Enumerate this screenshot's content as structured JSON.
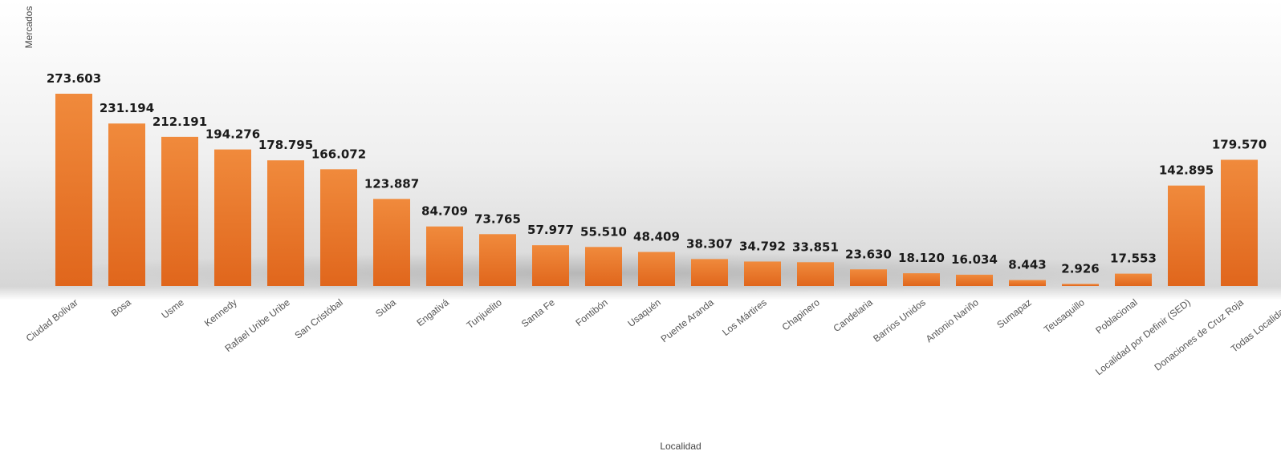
{
  "chart_data": {
    "type": "bar",
    "title": "",
    "xlabel": "Localidad",
    "ylabel": "Mercados",
    "ylim": [
      0,
      280000
    ],
    "grid": false,
    "legend": "none",
    "categories": [
      "Ciudad Bolivar",
      "Bosa",
      "Usme",
      "Kennedy",
      "Rafael Uribe Uribe",
      "San Cristóbal",
      "Suba",
      "Engativá",
      "Tunjuelito",
      "Santa Fe",
      "Fontibón",
      "Usaquén",
      "Puente Aranda",
      "Los Mártires",
      "Chapinero",
      "Candelaria",
      "Barrios Unidos",
      "Antonio Nariño",
      "Sumapaz",
      "Teusaquillo",
      "Poblacional",
      "Localidad por Definir (SED)",
      "Donaciones de Cruz Roja",
      "Todas Localidades"
    ],
    "values": [
      273603,
      231194,
      212191,
      194276,
      178795,
      166072,
      123887,
      84709,
      73765,
      57977,
      55510,
      48409,
      38307,
      34792,
      33851,
      23630,
      18120,
      16034,
      8443,
      2926,
      17553,
      142895,
      179570,
      0
    ],
    "value_labels": [
      "273.603",
      "231.194",
      "212.191",
      "194.276",
      "178.795",
      "166.072",
      "123.887",
      "84.709",
      "73.765",
      "57.977",
      "55.510",
      "48.409",
      "38.307",
      "34.792",
      "33.851",
      "23.630",
      "18.120",
      "16.034",
      "8.443",
      "2.926",
      "17.553",
      "142.895",
      "179.570",
      ""
    ],
    "colors": {
      "bar": "#ef7f2e",
      "bar_dark": "#d9661a",
      "background_top": "#ffffff",
      "background_mid": "#dcdcdc"
    }
  }
}
